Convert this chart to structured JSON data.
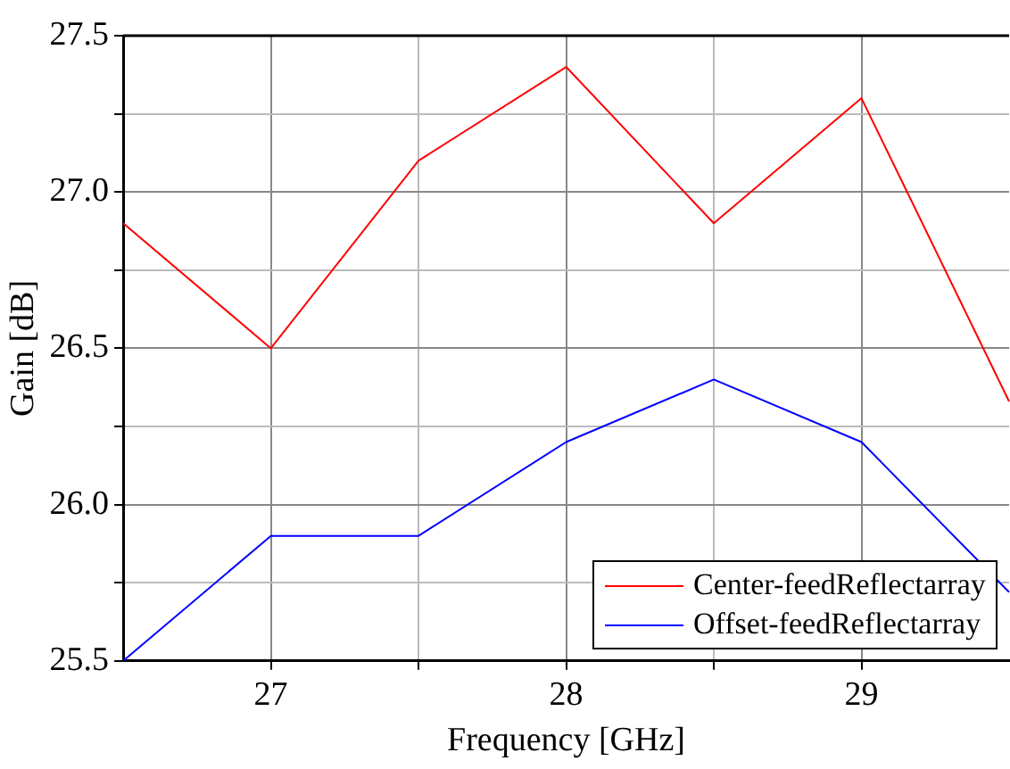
{
  "chart_data": {
    "type": "line",
    "xlabel": "Frequency [GHz]",
    "ylabel": "Gain [dB]",
    "x": [
      26.5,
      27,
      27.5,
      28,
      28.5,
      29,
      29.5
    ],
    "series": [
      {
        "name": "Center-feedReflectarray",
        "color": "#ff0000",
        "values": [
          26.9,
          26.5,
          27.1,
          27.4,
          26.9,
          27.3,
          26.33
        ]
      },
      {
        "name": "Offset-feedReflectarray",
        "color": "#0000ff",
        "values": [
          25.5,
          25.9,
          25.9,
          26.2,
          26.4,
          26.2,
          25.72
        ]
      }
    ],
    "xlim": [
      26.5,
      29.5
    ],
    "xticks": [
      27,
      {
        "value": 27.5,
        "label": null
      },
      28,
      {
        "value": 28.5,
        "label": null
      },
      29
    ],
    "ylim": [
      25.5,
      27.5
    ],
    "yticks": [
      25.5,
      {
        "value": 25.75,
        "label": null
      },
      {
        "value": 26,
        "label": "26.0"
      },
      {
        "value": 26.25,
        "label": null
      },
      26.5,
      {
        "value": 26.75,
        "label": null
      },
      {
        "value": 27,
        "label": "27.0"
      },
      {
        "value": 27.25,
        "label": null
      },
      27.5
    ],
    "grid": true,
    "legend": "bottom right",
    "marker": "none",
    "line_style": "solid"
  }
}
